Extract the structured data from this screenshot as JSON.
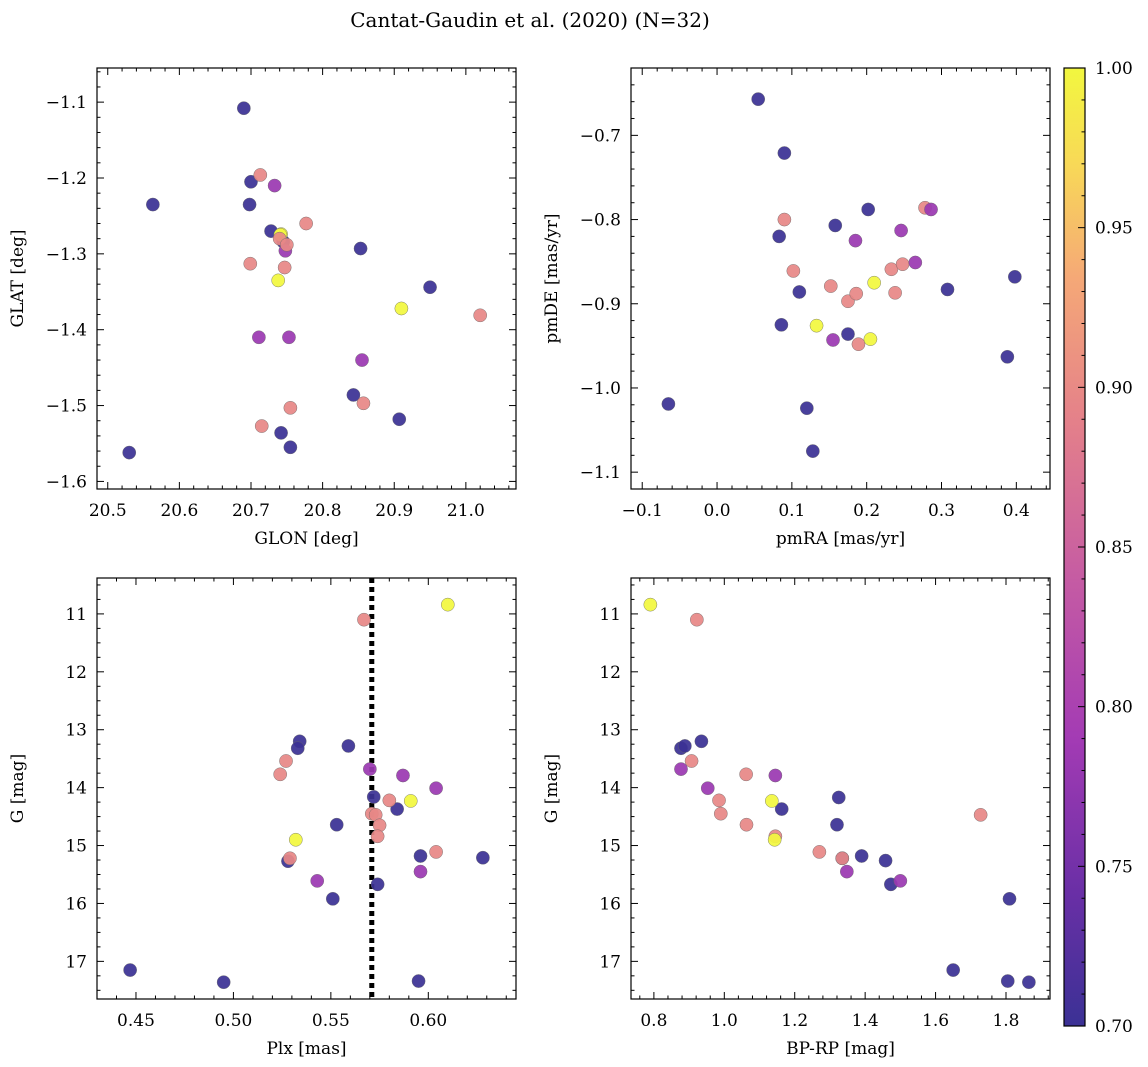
{
  "suptitle": "Cantat-Gaudin et al. (2020) (N=32)",
  "colorbar": {
    "ticks": [
      "0.70",
      "0.75",
      "0.80",
      "0.85",
      "0.90",
      "0.95",
      "1.00"
    ],
    "tick_values": [
      0.7,
      0.75,
      0.8,
      0.85,
      0.9,
      0.95,
      1.0
    ],
    "range": [
      0.7,
      1.0
    ],
    "colors": [
      "#3b3195",
      "#6a2fa6",
      "#a33bb4",
      "#c45aa4",
      "#e4808a",
      "#f5a877",
      "#f8d957",
      "#f2f73f"
    ]
  },
  "chart_data": [
    {
      "type": "scatter",
      "name": "glon-glat",
      "xlabel": "GLON [deg]",
      "ylabel": "GLAT [deg]",
      "xlim": [
        20.485,
        21.07
      ],
      "ylim": [
        -1.61,
        -1.055
      ],
      "yinvert": false,
      "xticks": [
        "20.5",
        "20.6",
        "20.7",
        "20.8",
        "20.9",
        "21.0"
      ],
      "xtick_values": [
        20.5,
        20.6,
        20.7,
        20.8,
        20.9,
        21.0
      ],
      "yticks": [
        "−1.1",
        "−1.2",
        "−1.3",
        "−1.4",
        "−1.5",
        "−1.6"
      ],
      "ytick_values": [
        -1.1,
        -1.2,
        -1.3,
        -1.4,
        -1.5,
        -1.6
      ],
      "x": [
        20.69,
        20.563,
        20.7,
        20.698,
        20.53,
        20.728,
        20.745,
        20.853,
        20.95,
        20.907,
        20.843,
        20.742,
        20.755,
        20.713,
        20.733,
        20.748,
        20.753,
        20.699,
        20.747,
        20.711,
        20.855,
        20.857,
        20.755,
        20.715,
        20.777,
        21.02,
        20.742,
        20.741,
        20.91,
        20.738,
        20.74,
        20.75
      ],
      "y": [
        -1.108,
        -1.235,
        -1.205,
        -1.235,
        -1.562,
        -1.27,
        -1.284,
        -1.293,
        -1.344,
        -1.518,
        -1.486,
        -1.536,
        -1.555,
        -1.196,
        -1.21,
        -1.296,
        -1.41,
        -1.313,
        -1.318,
        -1.41,
        -1.44,
        -1.497,
        -1.503,
        -1.527,
        -1.26,
        -1.381,
        -1.274,
        -1.275,
        -1.372,
        -1.335,
        -1.28,
        -1.288
      ],
      "c": [
        0.7,
        0.7,
        0.7,
        0.7,
        0.7,
        0.7,
        0.7,
        0.7,
        0.7,
        0.7,
        0.7,
        0.7,
        0.7,
        0.88,
        0.78,
        0.78,
        0.78,
        0.88,
        0.88,
        0.78,
        0.78,
        0.88,
        0.88,
        0.88,
        0.88,
        0.88,
        1.0,
        1.0,
        1.0,
        1.0,
        0.88,
        0.88
      ]
    },
    {
      "type": "scatter",
      "name": "pmra-pmde",
      "xlabel": "pmRA [mas/yr]",
      "ylabel": "pmDE [mas/yr]",
      "xlim": [
        -0.115,
        0.445
      ],
      "ylim": [
        -1.12,
        -0.62
      ],
      "yinvert": false,
      "xticks": [
        "−0.1",
        "0.0",
        "0.1",
        "0.2",
        "0.3",
        "0.4"
      ],
      "xtick_values": [
        -0.1,
        0.0,
        0.1,
        0.2,
        0.3,
        0.4
      ],
      "yticks": [
        "−0.7",
        "−0.8",
        "−0.9",
        "−1.0",
        "−1.1"
      ],
      "ytick_values": [
        -0.7,
        -0.8,
        -0.9,
        -1.0,
        -1.1
      ],
      "x": [
        0.055,
        0.09,
        0.083,
        0.11,
        0.158,
        0.202,
        0.086,
        0.175,
        0.308,
        0.398,
        0.388,
        -0.065,
        0.12,
        0.128,
        0.09,
        0.102,
        0.152,
        0.175,
        0.186,
        0.189,
        0.233,
        0.238,
        0.248,
        0.278,
        0.286,
        0.185,
        0.155,
        0.246,
        0.265,
        0.21,
        0.133,
        0.205
      ],
      "y": [
        -0.657,
        -0.721,
        -0.82,
        -0.886,
        -0.807,
        -0.788,
        -0.925,
        -0.936,
        -0.883,
        -0.868,
        -0.963,
        -1.019,
        -1.024,
        -1.075,
        -0.8,
        -0.861,
        -0.879,
        -0.897,
        -0.888,
        -0.948,
        -0.859,
        -0.887,
        -0.853,
        -0.786,
        -0.788,
        -0.825,
        -0.943,
        -0.813,
        -0.851,
        -0.875,
        -0.926,
        -0.942
      ],
      "c": [
        0.7,
        0.7,
        0.7,
        0.7,
        0.7,
        0.7,
        0.7,
        0.7,
        0.7,
        0.7,
        0.7,
        0.7,
        0.7,
        0.7,
        0.88,
        0.88,
        0.88,
        0.88,
        0.88,
        0.88,
        0.88,
        0.88,
        0.88,
        0.88,
        0.78,
        0.78,
        0.78,
        0.78,
        0.78,
        1.0,
        1.0,
        1.0
      ]
    },
    {
      "type": "scatter",
      "name": "plx-g",
      "xlabel": "Plx [mas]",
      "ylabel": "G [mag]",
      "xlim": [
        0.43,
        0.645
      ],
      "ylim": [
        17.65,
        10.38
      ],
      "yinvert": true,
      "vline": 0.571,
      "xticks": [
        "0.45",
        "0.50",
        "0.55",
        "0.60"
      ],
      "xtick_values": [
        0.45,
        0.5,
        0.55,
        0.6
      ],
      "yticks": [
        "11",
        "12",
        "13",
        "14",
        "15",
        "16",
        "17"
      ],
      "ytick_values": [
        11,
        12,
        13,
        14,
        15,
        16,
        17
      ],
      "x": [
        0.447,
        0.495,
        0.534,
        0.533,
        0.559,
        0.553,
        0.528,
        0.551,
        0.572,
        0.584,
        0.596,
        0.574,
        0.628,
        0.595,
        0.567,
        0.527,
        0.524,
        0.58,
        0.571,
        0.573,
        0.575,
        0.574,
        0.529,
        0.604,
        0.57,
        0.587,
        0.604,
        0.596,
        0.543,
        0.61,
        0.591,
        0.532
      ],
      "y": [
        17.15,
        17.36,
        13.2,
        13.32,
        13.28,
        14.64,
        15.27,
        15.92,
        14.16,
        14.37,
        15.18,
        15.67,
        15.21,
        17.34,
        11.1,
        13.54,
        13.77,
        14.22,
        14.45,
        14.47,
        14.65,
        14.84,
        15.22,
        15.11,
        13.68,
        13.79,
        14.01,
        15.45,
        15.61,
        10.84,
        14.23,
        14.9
      ],
      "c": [
        0.7,
        0.7,
        0.7,
        0.7,
        0.7,
        0.7,
        0.7,
        0.7,
        0.7,
        0.7,
        0.7,
        0.7,
        0.7,
        0.7,
        0.88,
        0.88,
        0.88,
        0.88,
        0.88,
        0.88,
        0.88,
        0.88,
        0.88,
        0.88,
        0.78,
        0.78,
        0.78,
        0.78,
        0.78,
        1.0,
        1.0,
        1.0
      ]
    },
    {
      "type": "scatter",
      "name": "bprp-g",
      "xlabel": "BP-RP [mag]",
      "ylabel": "G [mag]",
      "xlim": [
        0.735,
        1.925
      ],
      "ylim": [
        17.65,
        10.38
      ],
      "yinvert": true,
      "xticks": [
        "0.8",
        "1.0",
        "1.2",
        "1.4",
        "1.6",
        "1.8"
      ],
      "xtick_values": [
        0.8,
        1.0,
        1.2,
        1.4,
        1.6,
        1.8
      ],
      "yticks": [
        "11",
        "12",
        "13",
        "14",
        "15",
        "16",
        "17"
      ],
      "ytick_values": [
        11,
        12,
        13,
        14,
        15,
        16,
        17
      ],
      "x": [
        0.877,
        0.888,
        0.935,
        1.163,
        1.325,
        1.32,
        1.39,
        1.458,
        1.473,
        1.335,
        1.81,
        1.65,
        1.805,
        1.865,
        0.922,
        0.907,
        0.985,
        0.99,
        1.062,
        1.063,
        1.145,
        1.27,
        1.335,
        1.728,
        0.877,
        0.953,
        1.145,
        1.348,
        1.5,
        0.79,
        1.135,
        1.143
      ],
      "y": [
        13.32,
        13.28,
        13.2,
        14.37,
        14.17,
        14.64,
        15.18,
        15.26,
        15.67,
        15.22,
        15.92,
        17.15,
        17.34,
        17.36,
        11.1,
        13.54,
        14.22,
        14.45,
        13.77,
        14.64,
        14.84,
        15.11,
        15.22,
        14.47,
        13.68,
        14.01,
        13.79,
        15.45,
        15.61,
        10.84,
        14.23,
        14.9
      ],
      "c": [
        0.7,
        0.7,
        0.7,
        0.7,
        0.7,
        0.7,
        0.7,
        0.7,
        0.7,
        0.7,
        0.7,
        0.7,
        0.7,
        0.7,
        0.88,
        0.88,
        0.88,
        0.88,
        0.88,
        0.88,
        0.88,
        0.88,
        0.88,
        0.88,
        0.78,
        0.78,
        0.78,
        0.78,
        0.78,
        1.0,
        1.0,
        1.0
      ]
    }
  ]
}
